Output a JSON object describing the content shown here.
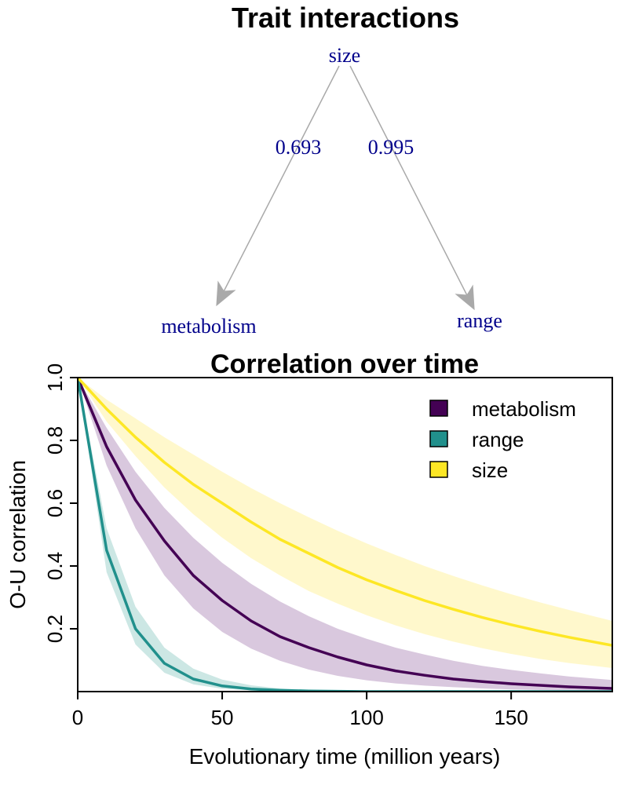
{
  "network": {
    "title": "Trait interactions",
    "nodes": [
      {
        "id": "size",
        "label": "size"
      },
      {
        "id": "metabolism",
        "label": "metabolism"
      },
      {
        "id": "range",
        "label": "range"
      }
    ],
    "edges": [
      {
        "from": "size",
        "to": "metabolism",
        "label": "0.693"
      },
      {
        "from": "size",
        "to": "range",
        "label": "0.995"
      }
    ],
    "label_color": "#00008b",
    "edge_color": "#a9a9a9"
  },
  "chart_data": {
    "type": "line",
    "title": "Correlation over time",
    "xlabel": "Evolutionary time (million years)",
    "ylabel": "O-U correlation",
    "xlim": [
      0,
      185
    ],
    "ylim": [
      0,
      1
    ],
    "x_ticks": [
      0,
      50,
      100,
      150
    ],
    "x_tick_labels": [
      "0",
      "50",
      "100",
      "150"
    ],
    "y_ticks": [
      0.2,
      0.4,
      0.6,
      0.8,
      1.0
    ],
    "y_tick_labels": [
      "0.2",
      "0.4",
      "0.6",
      "0.8",
      "1.0"
    ],
    "grid": false,
    "legend_position": "top-right",
    "x": [
      0,
      10,
      20,
      30,
      40,
      50,
      60,
      70,
      80,
      90,
      100,
      110,
      120,
      130,
      140,
      150,
      160,
      170,
      185
    ],
    "series": [
      {
        "name": "metabolism",
        "color": "#440154",
        "band_color": "#d9c8de",
        "values": [
          1.0,
          0.78,
          0.61,
          0.48,
          0.37,
          0.29,
          0.225,
          0.175,
          0.14,
          0.11,
          0.085,
          0.066,
          0.052,
          0.04,
          0.032,
          0.025,
          0.02,
          0.015,
          0.01
        ],
        "lower": [
          1.0,
          0.72,
          0.52,
          0.37,
          0.265,
          0.19,
          0.137,
          0.098,
          0.07,
          0.05,
          0.036,
          0.026,
          0.019,
          0.014,
          0.01,
          0.007,
          0.005,
          0.004,
          0.003
        ],
        "upper": [
          1.0,
          0.84,
          0.7,
          0.585,
          0.49,
          0.41,
          0.343,
          0.287,
          0.24,
          0.2,
          0.168,
          0.14,
          0.118,
          0.098,
          0.082,
          0.069,
          0.058,
          0.048,
          0.037
        ]
      },
      {
        "name": "range",
        "color": "#21908c",
        "band_color": "#cce7e4",
        "values": [
          1.0,
          0.45,
          0.2,
          0.09,
          0.04,
          0.018,
          0.008,
          0.004,
          0.002,
          0.001,
          0.0,
          0.0,
          0.0,
          0.0,
          0.0,
          0.0,
          0.0,
          0.0,
          0.0
        ],
        "lower": [
          1.0,
          0.38,
          0.15,
          0.06,
          0.023,
          0.009,
          0.004,
          0.002,
          0.001,
          0.0,
          0.0,
          0.0,
          0.0,
          0.0,
          0.0,
          0.0,
          0.0,
          0.0,
          0.0
        ],
        "upper": [
          1.0,
          0.52,
          0.27,
          0.14,
          0.073,
          0.038,
          0.02,
          0.01,
          0.005,
          0.003,
          0.001,
          0.0,
          0.0,
          0.0,
          0.0,
          0.0,
          0.0,
          0.0,
          0.0
        ]
      },
      {
        "name": "size",
        "color": "#fde725",
        "band_color": "#fff8cc",
        "values": [
          1.0,
          0.9,
          0.81,
          0.73,
          0.66,
          0.6,
          0.54,
          0.485,
          0.44,
          0.395,
          0.356,
          0.322,
          0.29,
          0.262,
          0.236,
          0.213,
          0.192,
          0.173,
          0.147
        ],
        "lower": [
          1.0,
          0.86,
          0.75,
          0.65,
          0.565,
          0.49,
          0.425,
          0.37,
          0.32,
          0.28,
          0.243,
          0.211,
          0.183,
          0.159,
          0.138,
          0.12,
          0.104,
          0.091,
          0.075
        ],
        "upper": [
          1.0,
          0.93,
          0.87,
          0.81,
          0.755,
          0.7,
          0.648,
          0.6,
          0.555,
          0.512,
          0.472,
          0.435,
          0.4,
          0.368,
          0.338,
          0.31,
          0.284,
          0.26,
          0.225
        ]
      }
    ]
  }
}
